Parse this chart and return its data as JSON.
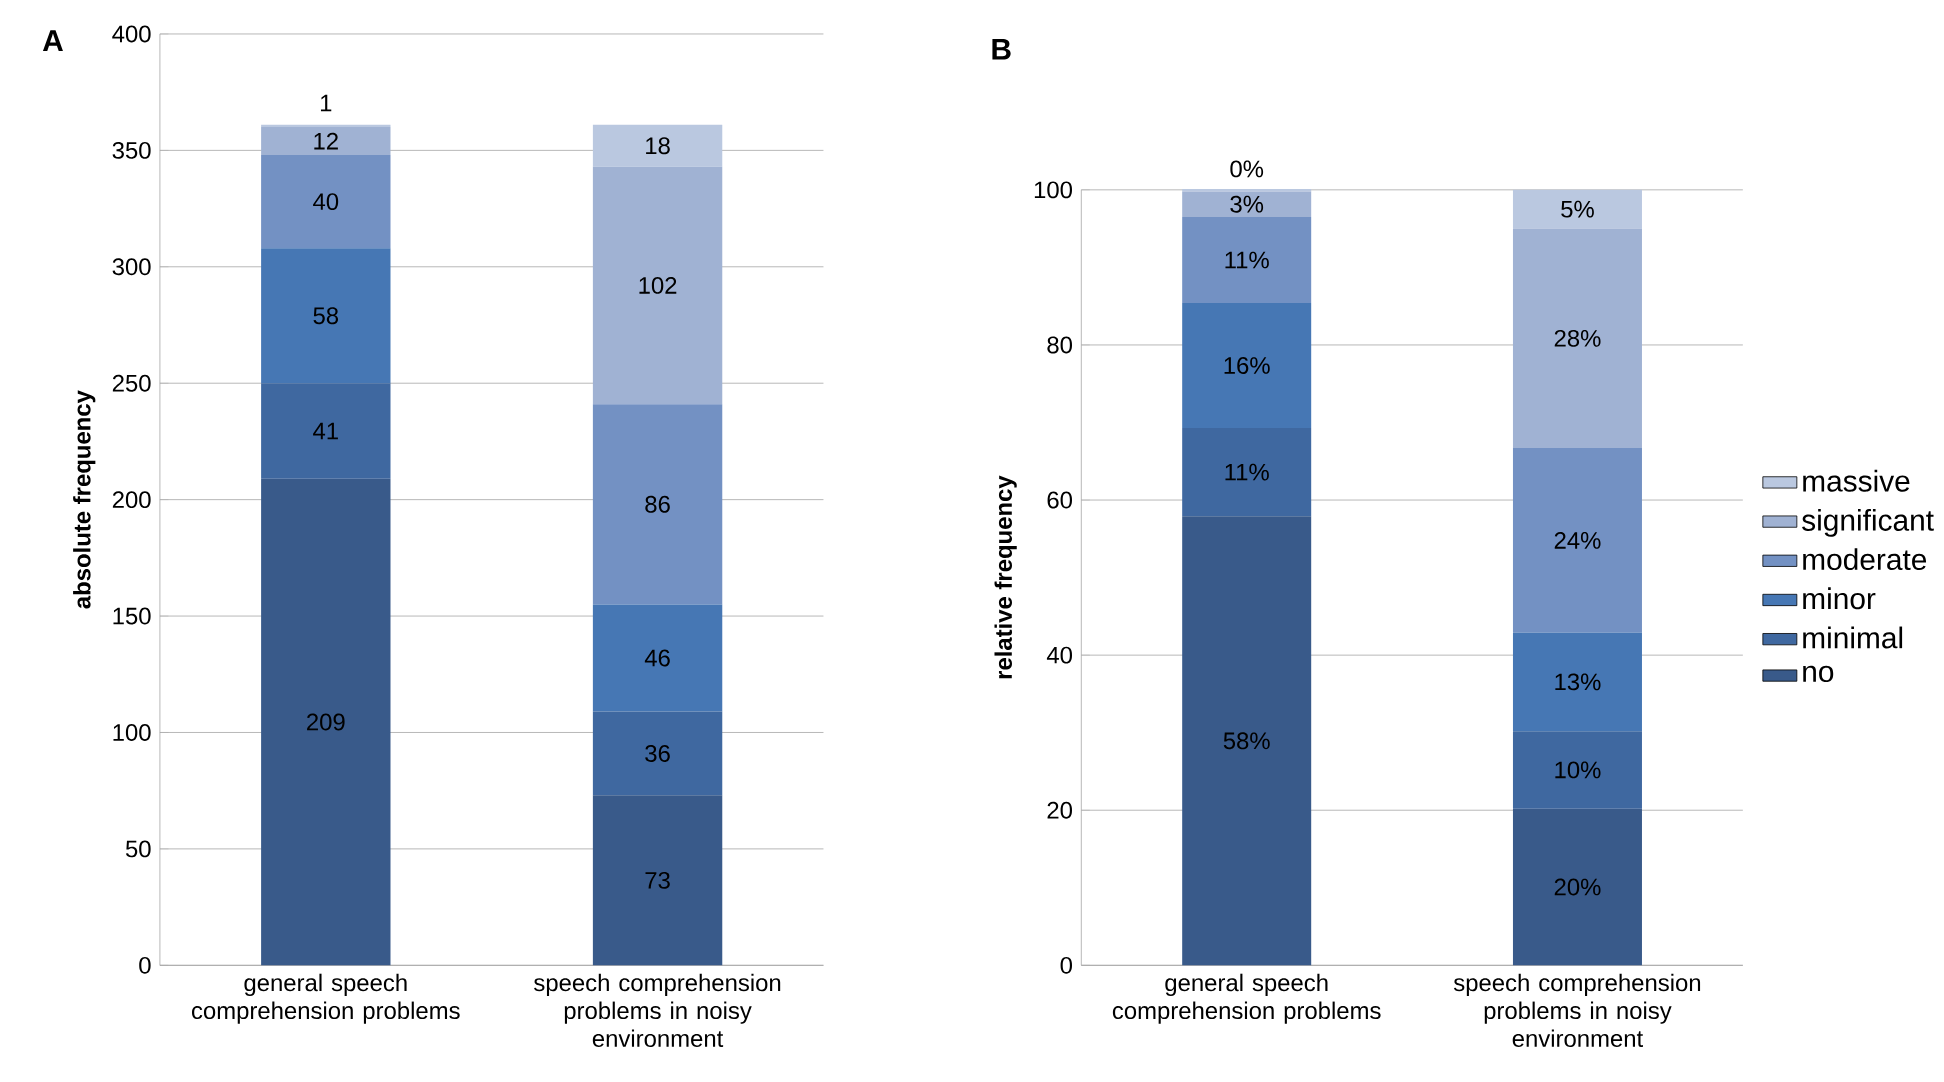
{
  "chart_data": [
    {
      "type": "bar",
      "title": "A",
      "ylabel": "absolute frequency",
      "stacked": true,
      "categories": [
        "general speech comprehension problems",
        "speech comprehension problems in noisy environment"
      ],
      "ylim": [
        0,
        400
      ],
      "yticks": [
        0,
        50,
        100,
        150,
        200,
        250,
        300,
        350,
        400
      ],
      "grid": "y",
      "data_labels": true,
      "legend": false,
      "series": [
        {
          "color": "#395a8a",
          "values": [
            209,
            73
          ]
        },
        {
          "color": "#3f68a0",
          "values": [
            41,
            36
          ]
        },
        {
          "color": "#4677b4",
          "values": [
            58,
            46
          ]
        },
        {
          "color": "#7391c3",
          "values": [
            40,
            86
          ]
        },
        {
          "color": "#a0b2d3",
          "values": [
            12,
            102
          ]
        },
        {
          "color": "#bac8e0",
          "values": [
            1,
            18
          ]
        }
      ]
    },
    {
      "type": "bar",
      "title": "B",
      "ylabel": "relative frequency",
      "stacked": true,
      "categories": [
        "general speech comprehension problems",
        "speech comprehension problems in noisy environment"
      ],
      "ylim": [
        0,
        100
      ],
      "yticks": [
        0,
        20,
        40,
        60,
        80,
        100
      ],
      "grid": "y",
      "legend": "right",
      "series": [
        {
          "name": "no",
          "color": "#395a8a",
          "values": [
            57.9,
            20.2
          ],
          "value_labels": [
            "58%",
            "20%"
          ]
        },
        {
          "name": "minimal",
          "color": "#3f68a0",
          "values": [
            11.4,
            10.0
          ],
          "value_labels": [
            "11%",
            "10%"
          ]
        },
        {
          "name": "minor",
          "color": "#4677b4",
          "values": [
            16.1,
            12.7
          ],
          "value_labels": [
            "16%",
            "13%"
          ]
        },
        {
          "name": "moderate",
          "color": "#7391c3",
          "values": [
            11.1,
            23.8
          ],
          "value_labels": [
            "11%",
            "24%"
          ]
        },
        {
          "name": "significant",
          "color": "#a0b2d3",
          "values": [
            3.3,
            28.3
          ],
          "value_labels": [
            "3%",
            "28%"
          ]
        },
        {
          "name": "massive",
          "color": "#bac8e0",
          "values": [
            0.3,
            5.0
          ],
          "value_labels": [
            "0%",
            "5%"
          ]
        }
      ]
    }
  ]
}
